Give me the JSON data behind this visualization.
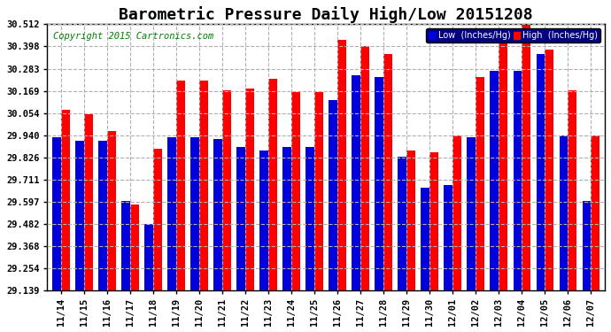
{
  "title": "Barometric Pressure Daily High/Low 20151208",
  "copyright": "Copyright 2015 Cartronics.com",
  "background_color": "#ffffff",
  "plot_bg_color": "#ffffff",
  "bar_color_low": "#0000dd",
  "bar_color_high": "#ff0000",
  "legend_low_label": "Low  (Inches/Hg)",
  "legend_high_label": "High  (Inches/Hg)",
  "ylim": [
    29.139,
    30.512
  ],
  "yticks": [
    29.139,
    29.254,
    29.368,
    29.482,
    29.597,
    29.711,
    29.826,
    29.94,
    30.054,
    30.169,
    30.283,
    30.398,
    30.512
  ],
  "dates": [
    "11/14",
    "11/15",
    "11/16",
    "11/17",
    "11/18",
    "11/19",
    "11/20",
    "11/21",
    "11/22",
    "11/23",
    "11/24",
    "11/25",
    "11/26",
    "11/27",
    "11/28",
    "11/29",
    "11/30",
    "12/01",
    "12/02",
    "12/03",
    "12/04",
    "12/05",
    "12/06",
    "12/07"
  ],
  "low": [
    29.93,
    29.91,
    29.91,
    29.6,
    29.48,
    29.93,
    29.93,
    29.92,
    29.88,
    29.86,
    29.88,
    29.88,
    30.12,
    30.25,
    30.24,
    29.83,
    29.67,
    29.68,
    29.93,
    30.27,
    30.27,
    30.36,
    29.94,
    29.6
  ],
  "high": [
    30.07,
    30.05,
    29.96,
    29.58,
    29.87,
    30.22,
    30.22,
    30.17,
    30.18,
    30.23,
    30.16,
    30.16,
    30.43,
    30.4,
    30.36,
    29.86,
    29.85,
    29.94,
    30.24,
    30.46,
    30.51,
    30.38,
    30.17,
    29.94
  ],
  "grid_color": "#b0b0b0",
  "grid_linestyle": "--",
  "title_fontsize": 13,
  "tick_fontsize": 7.5,
  "copyright_fontsize": 7.5
}
